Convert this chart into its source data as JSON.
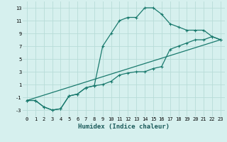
{
  "xlabel": "Humidex (Indice chaleur)",
  "bg_color": "#d6f0ee",
  "grid_color": "#b8dcd8",
  "line_color": "#1a7a6e",
  "line1_x": [
    0,
    1,
    2,
    3,
    4,
    5,
    6,
    7,
    8,
    9,
    10,
    11,
    12,
    13,
    14,
    15,
    16,
    17,
    18,
    19,
    20,
    21,
    22,
    23
  ],
  "line1_y": [
    -1.5,
    -1.5,
    -2.5,
    -3,
    -2.8,
    -0.8,
    -0.5,
    0.5,
    0.8,
    7,
    9,
    11,
    11.5,
    11.5,
    13,
    13,
    12,
    10.5,
    10,
    9.5,
    9.5,
    9.5,
    8.5,
    8
  ],
  "line2_x": [
    0,
    1,
    2,
    3,
    4,
    5,
    6,
    7,
    8,
    9,
    10,
    11,
    12,
    13,
    14,
    15,
    16,
    17,
    18,
    19,
    20,
    21,
    22,
    23
  ],
  "line2_y": [
    -1.5,
    -1.5,
    -2.5,
    -3,
    -2.8,
    -0.8,
    -0.5,
    0.5,
    0.8,
    1,
    1.5,
    2.5,
    2.8,
    3,
    3,
    3.5,
    3.8,
    6.5,
    7,
    7.5,
    8,
    8,
    8.5,
    8
  ],
  "line3_x": [
    0,
    23
  ],
  "line3_y": [
    -1.5,
    8
  ],
  "xlim": [
    -0.5,
    23.5
  ],
  "ylim": [
    -4,
    14
  ],
  "xticks": [
    0,
    1,
    2,
    3,
    4,
    5,
    6,
    7,
    8,
    9,
    10,
    11,
    12,
    13,
    14,
    15,
    16,
    17,
    18,
    19,
    20,
    21,
    22,
    23
  ],
  "yticks": [
    -3,
    -1,
    1,
    3,
    5,
    7,
    9,
    11,
    13
  ],
  "tick_fontsize": 5.0,
  "xlabel_fontsize": 6.5,
  "linewidth": 0.9,
  "markersize": 3.0
}
